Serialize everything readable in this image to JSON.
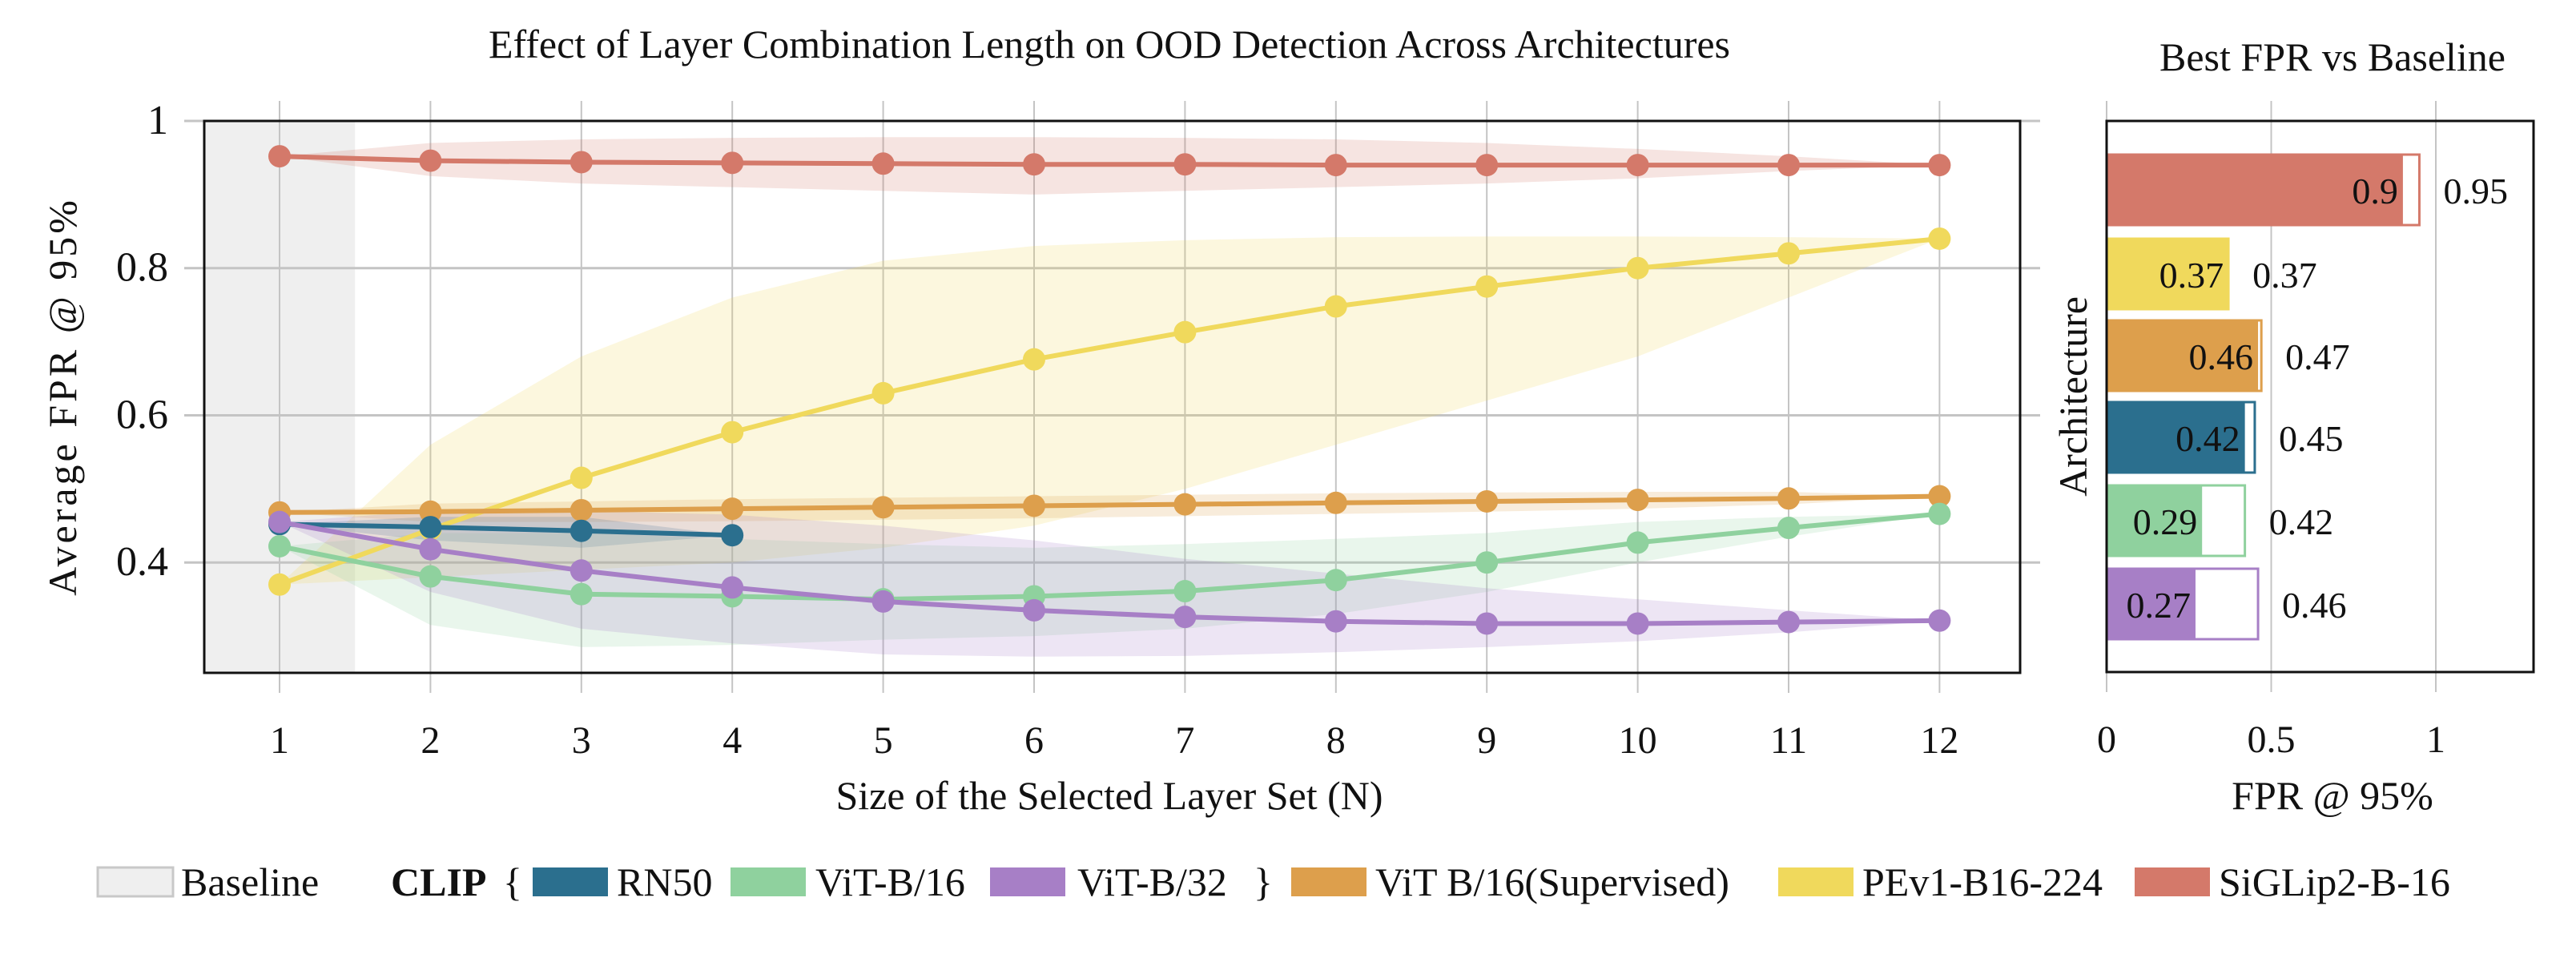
{
  "chart_data": [
    {
      "type": "line",
      "title": "Effect of Layer Combination Length on OOD Detection Across Architectures",
      "xlabel": "Size of the Selected Layer Set (N)",
      "ylabel": "Average FPR @ 95%",
      "x": [
        1,
        2,
        3,
        4,
        5,
        6,
        7,
        8,
        9,
        10,
        11,
        12
      ],
      "xticks": [
        "1",
        "2",
        "3",
        "4",
        "5",
        "6",
        "7",
        "8",
        "9",
        "10",
        "11",
        "12"
      ],
      "yticks": [
        "0.4",
        "0.6",
        "0.8",
        "1"
      ],
      "ylim": [
        0.25,
        1.0
      ],
      "xlim": [
        0.5,
        12.5
      ],
      "grid": true,
      "baseline_region": [
        0.5,
        1.5
      ],
      "series": [
        {
          "name": "SiGLip2-B-16",
          "color": "#d4796a",
          "values": [
            0.952,
            0.946,
            0.944,
            0.943,
            0.942,
            0.941,
            0.941,
            0.94,
            0.94,
            0.94,
            0.94,
            0.94
          ],
          "band_lo": [
            0.952,
            0.925,
            0.915,
            0.91,
            0.905,
            0.9,
            0.905,
            0.91,
            0.915,
            0.922,
            0.932,
            0.94
          ],
          "band_hi": [
            0.952,
            0.97,
            0.975,
            0.977,
            0.978,
            0.978,
            0.977,
            0.975,
            0.97,
            0.962,
            0.952,
            0.94
          ]
        },
        {
          "name": "PEv1-B16-224",
          "color": "#f0d95c",
          "values": [
            0.37,
            0.445,
            0.515,
            0.577,
            0.63,
            0.676,
            0.713,
            0.748,
            0.775,
            0.8,
            0.82,
            0.84
          ],
          "band_lo": [
            0.37,
            0.38,
            0.39,
            0.4,
            0.42,
            0.45,
            0.5,
            0.56,
            0.62,
            0.68,
            0.76,
            0.84
          ],
          "band_hi": [
            0.37,
            0.56,
            0.68,
            0.76,
            0.81,
            0.83,
            0.838,
            0.842,
            0.843,
            0.843,
            0.842,
            0.84
          ]
        },
        {
          "name": "ViT B/16(Supervised)",
          "color": "#dd9f4c",
          "values": [
            0.468,
            0.469,
            0.471,
            0.473,
            0.475,
            0.477,
            0.479,
            0.481,
            0.483,
            0.485,
            0.487,
            0.49
          ],
          "band_lo": [
            0.468,
            0.455,
            0.455,
            0.456,
            0.458,
            0.46,
            0.463,
            0.466,
            0.469,
            0.473,
            0.479,
            0.49
          ],
          "band_hi": [
            0.468,
            0.48,
            0.483,
            0.486,
            0.488,
            0.49,
            0.492,
            0.494,
            0.495,
            0.496,
            0.496,
            0.49
          ]
        },
        {
          "name": "RN50",
          "group": "CLIP",
          "color": "#2b6f8e",
          "values": [
            0.452,
            0.448,
            0.443,
            0.437
          ],
          "band_lo": [
            0.452,
            0.43,
            0.42,
            0.437
          ],
          "band_hi": [
            0.452,
            0.462,
            0.462,
            0.437
          ]
        },
        {
          "name": "ViT-B/16",
          "group": "CLIP",
          "color": "#8fd19e",
          "values": [
            0.422,
            0.381,
            0.357,
            0.354,
            0.35,
            0.354,
            0.361,
            0.376,
            0.4,
            0.427,
            0.447,
            0.466
          ],
          "band_lo": [
            0.422,
            0.315,
            0.285,
            0.288,
            0.295,
            0.3,
            0.31,
            0.33,
            0.36,
            0.4,
            0.435,
            0.466
          ],
          "band_hi": [
            0.422,
            0.44,
            0.44,
            0.432,
            0.425,
            0.42,
            0.425,
            0.432,
            0.44,
            0.455,
            0.462,
            0.466
          ]
        },
        {
          "name": "ViT-B/32",
          "group": "CLIP",
          "color": "#a77fc6",
          "values": [
            0.455,
            0.418,
            0.389,
            0.366,
            0.347,
            0.335,
            0.326,
            0.32,
            0.317,
            0.317,
            0.319,
            0.321
          ],
          "band_lo": [
            0.455,
            0.36,
            0.31,
            0.29,
            0.275,
            0.272,
            0.273,
            0.278,
            0.285,
            0.293,
            0.305,
            0.321
          ],
          "band_hi": [
            0.455,
            0.47,
            0.47,
            0.465,
            0.45,
            0.43,
            0.405,
            0.385,
            0.365,
            0.35,
            0.335,
            0.321
          ]
        }
      ]
    },
    {
      "type": "bar",
      "orientation": "horizontal",
      "title": "Best FPR vs Baseline",
      "xlabel": "FPR @ 95%",
      "ylabel": "Architecture",
      "xticks": [
        "0",
        "0.5",
        "1"
      ],
      "xlim": [
        0,
        1.3
      ],
      "grid": true,
      "categories": [
        "SiGLip2-B-16",
        "PEv1-B16-224",
        "ViT B/16(Supervised)",
        "RN50",
        "ViT-B/16",
        "ViT-B/32"
      ],
      "colors": [
        "#d4796a",
        "#f0d95c",
        "#dd9f4c",
        "#2b6f8e",
        "#8fd19e",
        "#a77fc6"
      ],
      "best": [
        0.9,
        0.37,
        0.46,
        0.42,
        0.29,
        0.27
      ],
      "baseline": [
        0.95,
        0.37,
        0.47,
        0.45,
        0.42,
        0.46
      ],
      "best_labels": [
        "0.9",
        "0.37",
        "0.46",
        "0.42",
        "0.29",
        "0.27"
      ],
      "baseline_labels": [
        "0.95",
        "0.37",
        "0.47",
        "0.45",
        "0.42",
        "0.46"
      ]
    }
  ],
  "legend": {
    "baseline_label": "Baseline",
    "clip_label": "CLIP",
    "clip_open": "{",
    "clip_close": "}",
    "items": [
      {
        "label": "RN50",
        "color": "#2b6f8e"
      },
      {
        "label": "ViT-B/16",
        "color": "#8fd19e"
      },
      {
        "label": "ViT-B/32",
        "color": "#a77fc6"
      },
      {
        "label": "ViT B/16(Supervised)",
        "color": "#dd9f4c"
      },
      {
        "label": "PEv1-B16-224",
        "color": "#f0d95c"
      },
      {
        "label": "SiGLip2-B-16",
        "color": "#d4796a"
      }
    ]
  }
}
